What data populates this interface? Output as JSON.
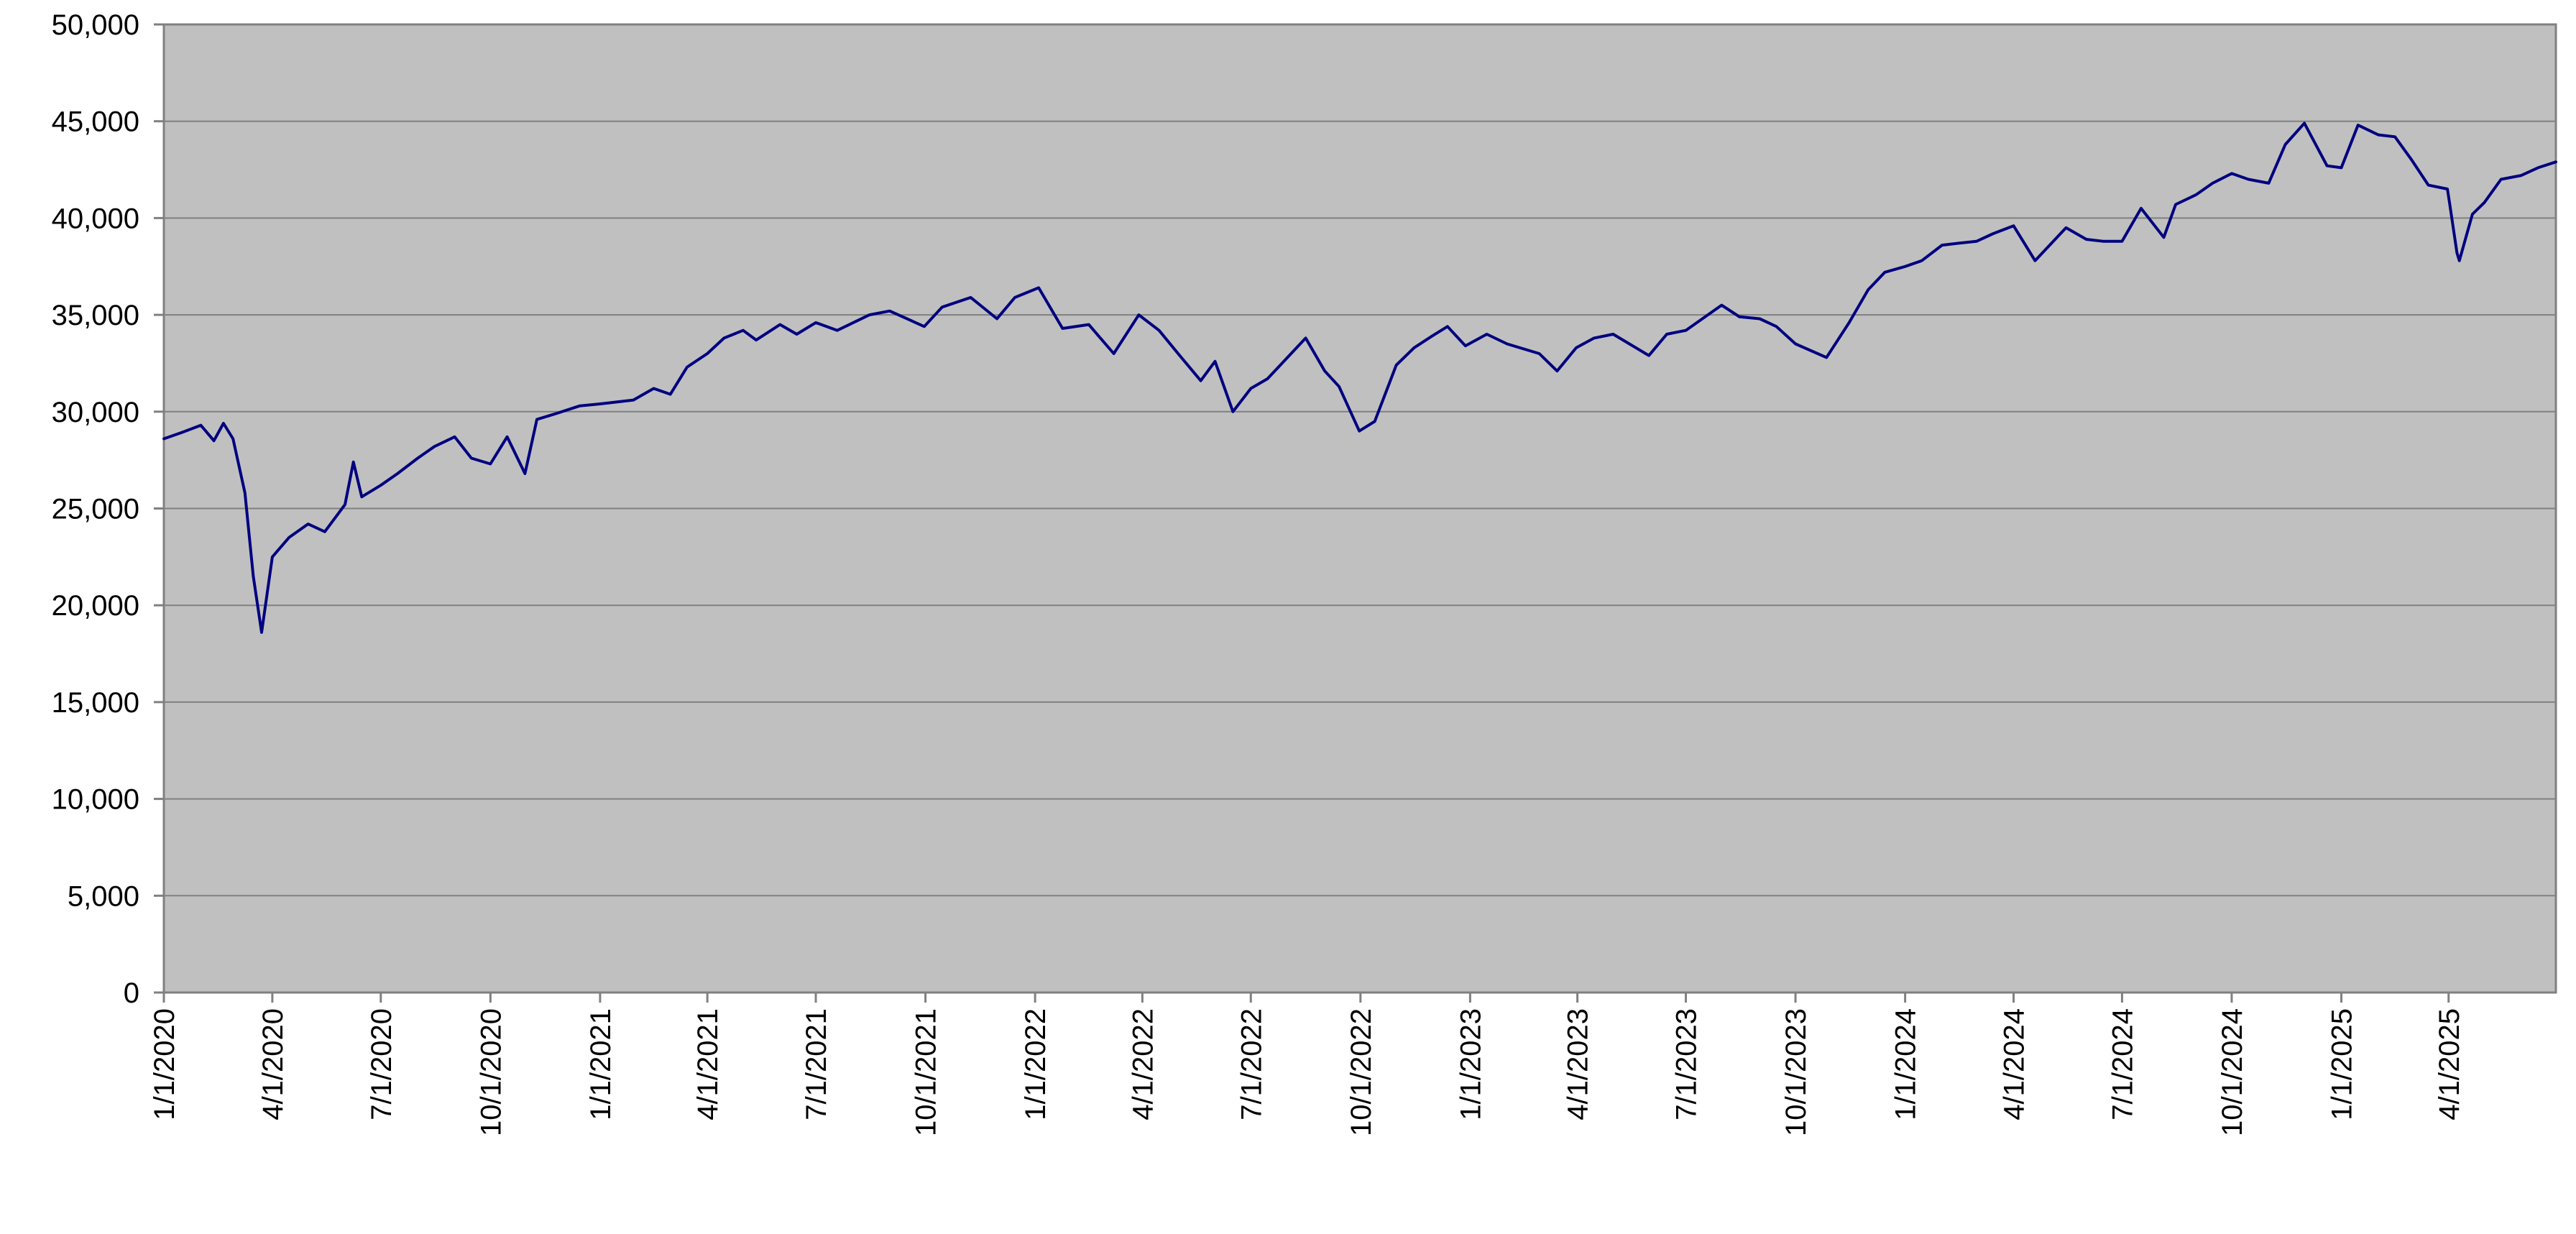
{
  "chart_data": {
    "type": "line",
    "title": "",
    "xlabel": "",
    "ylabel": "",
    "ylim": [
      0,
      50000
    ],
    "xlim": [
      "2020-01-01",
      "2025-06-30"
    ],
    "y_ticks": [
      0,
      5000,
      10000,
      15000,
      20000,
      25000,
      30000,
      35000,
      40000,
      45000,
      50000
    ],
    "y_tick_labels": [
      "0",
      "5,000",
      "10,000",
      "15,000",
      "20,000",
      "25,000",
      "30,000",
      "35,000",
      "40,000",
      "45,000",
      "50,000"
    ],
    "x_ticks": [
      "2020-01-01",
      "2020-04-01",
      "2020-07-01",
      "2020-10-01",
      "2021-01-01",
      "2021-04-01",
      "2021-07-01",
      "2021-10-01",
      "2022-01-01",
      "2022-04-01",
      "2022-07-01",
      "2022-10-01",
      "2023-01-01",
      "2023-04-01",
      "2023-07-01",
      "2023-10-01",
      "2024-01-01",
      "2024-04-01",
      "2024-07-01",
      "2024-10-01",
      "2025-01-01",
      "2025-04-01"
    ],
    "x_tick_labels": [
      "1/1/2020",
      "4/1/2020",
      "7/1/2020",
      "10/1/2020",
      "1/1/2021",
      "4/1/2021",
      "7/1/2021",
      "10/1/2021",
      "1/1/2022",
      "4/1/2022",
      "7/1/2022",
      "10/1/2022",
      "1/1/2023",
      "4/1/2023",
      "7/1/2023",
      "10/1/2023",
      "1/1/2024",
      "4/1/2024",
      "7/1/2024",
      "10/1/2024",
      "1/1/2025",
      "4/1/2025"
    ],
    "grid": true,
    "legend": "none",
    "colors": {
      "plot_background": "#c0c0c0",
      "line": "#000080",
      "grid": "#808080"
    },
    "series": [
      {
        "x": [
          "2020-01-01",
          "2020-01-15",
          "2020-02-01",
          "2020-02-12",
          "2020-02-20",
          "2020-02-28",
          "2020-03-09",
          "2020-03-16",
          "2020-03-23",
          "2020-04-01",
          "2020-04-15",
          "2020-05-01",
          "2020-05-15",
          "2020-06-01",
          "2020-06-08",
          "2020-06-15",
          "2020-07-01",
          "2020-07-15",
          "2020-08-01",
          "2020-08-15",
          "2020-09-01",
          "2020-09-15",
          "2020-10-01",
          "2020-10-15",
          "2020-10-30",
          "2020-11-09",
          "2020-11-25",
          "2020-12-15",
          "2021-01-01",
          "2021-01-29",
          "2021-02-15",
          "2021-03-01",
          "2021-03-15",
          "2021-04-01",
          "2021-04-15",
          "2021-05-01",
          "2021-05-12",
          "2021-06-01",
          "2021-06-15",
          "2021-07-01",
          "2021-07-19",
          "2021-08-15",
          "2021-09-01",
          "2021-09-30",
          "2021-10-15",
          "2021-11-08",
          "2021-11-30",
          "2021-12-15",
          "2022-01-04",
          "2022-01-24",
          "2022-02-15",
          "2022-03-08",
          "2022-03-29",
          "2022-04-15",
          "2022-05-01",
          "2022-05-20",
          "2022-06-01",
          "2022-06-16",
          "2022-07-01",
          "2022-07-15",
          "2022-08-16",
          "2022-09-01",
          "2022-09-13",
          "2022-09-30",
          "2022-10-13",
          "2022-10-31",
          "2022-11-15",
          "2022-11-30",
          "2022-12-13",
          "2022-12-28",
          "2023-01-15",
          "2023-02-01",
          "2023-02-28",
          "2023-03-15",
          "2023-03-31",
          "2023-04-15",
          "2023-05-01",
          "2023-05-31",
          "2023-06-15",
          "2023-07-01",
          "2023-07-31",
          "2023-08-15",
          "2023-09-01",
          "2023-09-15",
          "2023-10-01",
          "2023-10-27",
          "2023-11-15",
          "2023-12-01",
          "2023-12-15",
          "2024-01-01",
          "2024-01-15",
          "2024-02-01",
          "2024-02-15",
          "2024-03-01",
          "2024-03-15",
          "2024-04-01",
          "2024-04-19",
          "2024-05-15",
          "2024-06-01",
          "2024-06-15",
          "2024-07-01",
          "2024-07-17",
          "2024-08-05",
          "2024-08-15",
          "2024-09-01",
          "2024-09-15",
          "2024-10-01",
          "2024-10-15",
          "2024-11-01",
          "2024-11-15",
          "2024-12-01",
          "2024-12-20",
          "2025-01-01",
          "2025-01-15",
          "2025-02-01",
          "2025-02-15",
          "2025-03-01",
          "2025-03-15",
          "2025-03-31",
          "2025-04-02",
          "2025-04-08",
          "2025-04-10",
          "2025-04-21",
          "2025-05-01",
          "2025-05-15",
          "2025-06-01",
          "2025-06-15",
          "2025-06-30"
        ],
        "y": [
          28600,
          28900,
          29300,
          28500,
          29400,
          28600,
          25800,
          21500,
          18600,
          22500,
          23500,
          24200,
          23800,
          25200,
          27400,
          25600,
          26200,
          26800,
          27600,
          28200,
          28700,
          27600,
          27300,
          28700,
          26800,
          29600,
          29900,
          30300,
          30400,
          30600,
          31200,
          30900,
          32300,
          33000,
          33800,
          34200,
          33700,
          34500,
          34000,
          34600,
          34200,
          35000,
          35200,
          34400,
          35400,
          35900,
          34800,
          35900,
          36400,
          34300,
          34500,
          33000,
          35000,
          34200,
          33000,
          31600,
          32600,
          30000,
          31200,
          31700,
          33800,
          32100,
          31300,
          29000,
          29500,
          32400,
          33300,
          33900,
          34400,
          33400,
          34000,
          33500,
          33000,
          32100,
          33300,
          33800,
          34000,
          32900,
          34000,
          34200,
          35500,
          34900,
          34800,
          34400,
          33500,
          32800,
          34600,
          36300,
          37200,
          37500,
          37800,
          38600,
          38700,
          38800,
          39200,
          39600,
          37800,
          39500,
          38900,
          38800,
          38800,
          40500,
          39000,
          40700,
          41200,
          41800,
          42300,
          42000,
          41800,
          43800,
          44900,
          42700,
          42600,
          44800,
          44300,
          44200,
          43000,
          41700,
          41500,
          40700,
          38200,
          37800,
          40200,
          40800,
          42000,
          42200,
          42600,
          42900
        ],
        "points": 128
      }
    ]
  }
}
